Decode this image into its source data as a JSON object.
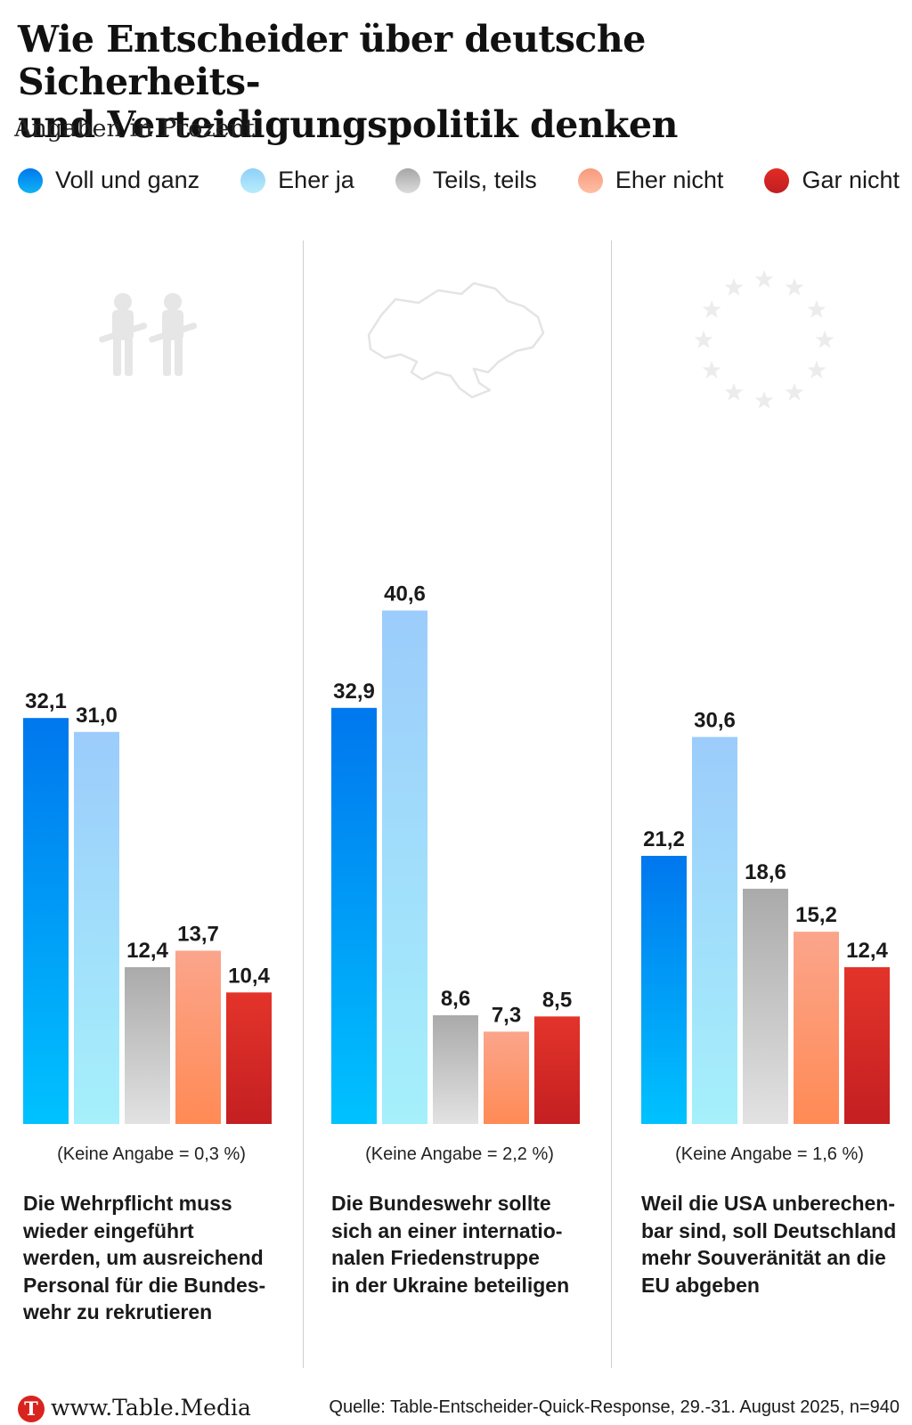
{
  "title_lines": [
    "Wie Entscheider über deutsche Sicherheits-",
    "und Verteidigungspolitik denken"
  ],
  "subtitle": "Angaben in Prozent",
  "legend": [
    {
      "label": "Voll und ganz",
      "color": "#0a84f0"
    },
    {
      "label": "Eher ja",
      "color": "#a9def9"
    },
    {
      "label": "Teils, teils",
      "color": "#c4c4c4"
    },
    {
      "label": "Eher nicht",
      "color": "#fba98d"
    },
    {
      "label": "Gar nicht",
      "color": "#d9231f"
    }
  ],
  "panels": [
    {
      "note": "(Keine Angabe = 0,3 %)",
      "statement_lines": [
        "Die Wehrpflicht muss",
        "wieder eingeführt",
        "werden, um ausreichend",
        "Personal für die Bundes-",
        "wehr zu rekrutieren"
      ],
      "icon": "soldiers-icon"
    },
    {
      "note": "(Keine Angabe = 2,2 %)",
      "statement_lines": [
        "Die Bundeswehr sollte",
        "sich an einer internatio-",
        "nalen Friedenstruppe",
        "in der Ukraine beteiligen"
      ],
      "icon": "ukraine-map-icon"
    },
    {
      "note": "(Keine Angabe = 1,6 %)",
      "statement_lines": [
        "Weil die USA unberechen-",
        "bar sind, soll Deutschland",
        "mehr Souveränität an die",
        "EU abgeben"
      ],
      "icon": "eu-stars-icon"
    }
  ],
  "chart_data": [
    {
      "type": "bar",
      "categories": [
        "Voll und ganz",
        "Eher ja",
        "Teils, teils",
        "Eher nicht",
        "Gar nicht"
      ],
      "values": [
        32.1,
        31.0,
        12.4,
        13.7,
        10.4
      ],
      "labels": [
        "32,1",
        "31,0",
        "12,4",
        "13,7",
        "10,4"
      ],
      "ylim": [
        0,
        50
      ],
      "grid": false
    },
    {
      "type": "bar",
      "categories": [
        "Voll und ganz",
        "Eher ja",
        "Teils, teils",
        "Eher nicht",
        "Gar nicht"
      ],
      "values": [
        32.9,
        40.6,
        8.6,
        7.3,
        8.5
      ],
      "labels": [
        "32,9",
        "40,6",
        "8,6",
        "7,3",
        "8,5"
      ],
      "ylim": [
        0,
        50
      ],
      "grid": false
    },
    {
      "type": "bar",
      "categories": [
        "Voll und ganz",
        "Eher ja",
        "Teils, teils",
        "Eher nicht",
        "Gar nicht"
      ],
      "values": [
        21.2,
        30.6,
        18.6,
        15.2,
        12.4
      ],
      "labels": [
        "21,2",
        "30,6",
        "18,6",
        "15,2",
        "12,4"
      ],
      "ylim": [
        0,
        50
      ],
      "grid": false
    }
  ],
  "footer": {
    "logo_letter": "T",
    "site": "www.Table.Media",
    "source": "Quelle: Table-Entscheider-Quick-Response, 29.-31. August 2025, n=940"
  }
}
